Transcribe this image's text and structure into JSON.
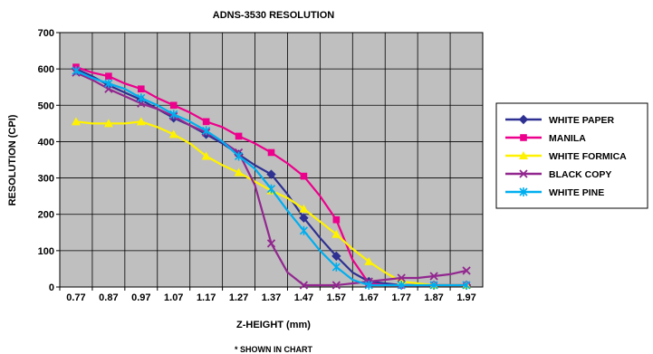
{
  "chart_data": {
    "type": "line",
    "title": "ADNS-3530 RESOLUTION",
    "xlabel": "Z-HEIGHT (mm)",
    "ylabel": "RESOLUTION (CPI)",
    "ylim": [
      0,
      700
    ],
    "yticks": [
      0,
      100,
      200,
      300,
      400,
      500,
      600,
      700
    ],
    "categories": [
      "0.77",
      "0.87",
      "0.97",
      "1.07",
      "1.17",
      "1.27",
      "1.37",
      "1.47",
      "1.57",
      "1.67",
      "1.77",
      "1.87",
      "1.97"
    ],
    "x": [
      0.77,
      0.82,
      0.87,
      0.92,
      0.97,
      1.02,
      1.07,
      1.12,
      1.17,
      1.22,
      1.27,
      1.32,
      1.37,
      1.42,
      1.47,
      1.52,
      1.57,
      1.62,
      1.67,
      1.72,
      1.77,
      1.82,
      1.87,
      1.92,
      1.97
    ],
    "grid": true,
    "legend_position": "right",
    "series": [
      {
        "name": "WHITE PAPER",
        "color": "#2e3192",
        "marker": "diamond",
        "values": [
          600,
          580,
          555,
          535,
          515,
          490,
          465,
          445,
          420,
          395,
          365,
          335,
          310,
          255,
          190,
          135,
          85,
          40,
          15,
          10,
          5,
          5,
          5,
          5,
          5
        ]
      },
      {
        "name": "MANILA",
        "color": "#ec008c",
        "marker": "square",
        "values": [
          605,
          590,
          580,
          560,
          545,
          520,
          500,
          480,
          455,
          440,
          415,
          395,
          370,
          340,
          305,
          250,
          185,
          75,
          10,
          5,
          5,
          5,
          5,
          5,
          5
        ]
      },
      {
        "name": "WHITE FORMICA",
        "color": "#fff200",
        "marker": "triangle",
        "values": [
          455,
          450,
          450,
          450,
          455,
          440,
          420,
          395,
          360,
          335,
          315,
          290,
          265,
          245,
          215,
          180,
          145,
          105,
          70,
          40,
          15,
          10,
          5,
          5,
          5
        ]
      },
      {
        "name": "BLACK COPY",
        "color": "#92278f",
        "marker": "x",
        "values": [
          590,
          570,
          545,
          525,
          505,
          490,
          470,
          445,
          425,
          400,
          370,
          280,
          120,
          40,
          5,
          5,
          5,
          10,
          15,
          20,
          25,
          25,
          30,
          35,
          45
        ]
      },
      {
        "name": "WHITE PINE",
        "color": "#00aeef",
        "marker": "star",
        "values": [
          595,
          575,
          560,
          545,
          520,
          500,
          475,
          455,
          430,
          400,
          360,
          325,
          270,
          210,
          155,
          100,
          55,
          20,
          5,
          5,
          5,
          5,
          5,
          5,
          5
        ]
      }
    ]
  },
  "caption": "* SHOWN IN CHART"
}
